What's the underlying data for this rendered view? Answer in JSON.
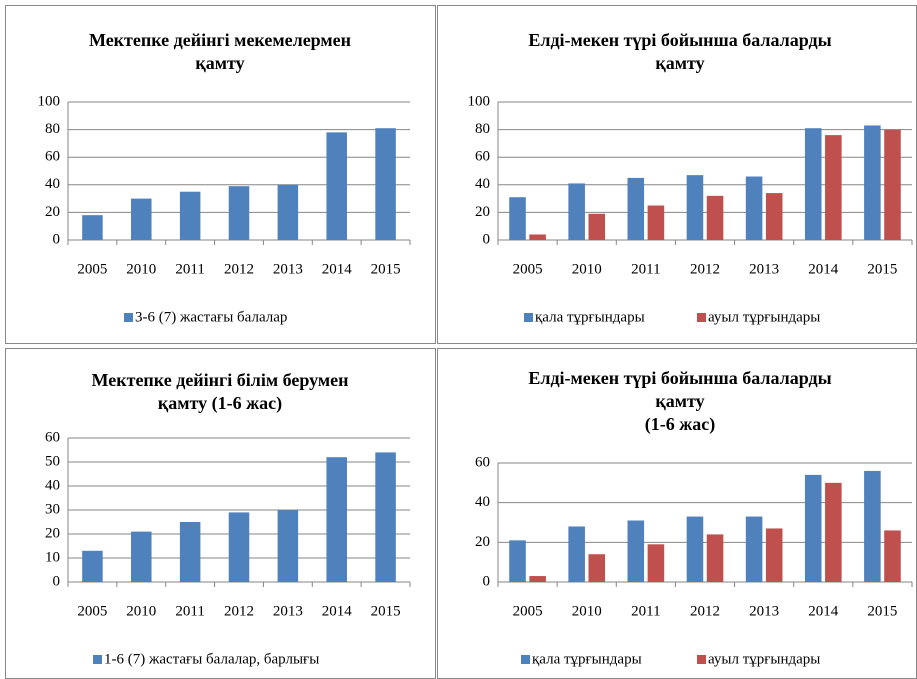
{
  "chart_data": [
    {
      "type": "bar",
      "title": [
        "Мектепке дейінгі мекемелермен",
        "қамту"
      ],
      "categories": [
        "2005",
        "2010",
        "2011",
        "2012",
        "2013",
        "2014",
        "2015"
      ],
      "series": [
        {
          "name": "3-6 (7) жастағы балалар",
          "color": "#4f81bd",
          "values": [
            18,
            30,
            35,
            39,
            40,
            78,
            81
          ]
        }
      ],
      "ylim": [
        0,
        100
      ],
      "yticks": [
        0,
        20,
        40,
        60,
        80,
        100
      ],
      "grid": true
    },
    {
      "type": "bar",
      "title": [
        "Елді-мекен түрі бойынша балаларды",
        "қамту"
      ],
      "categories": [
        "2005",
        "2010",
        "2011",
        "2012",
        "2013",
        "2014",
        "2015"
      ],
      "series": [
        {
          "name": "қала тұрғындары",
          "color": "#4f81bd",
          "values": [
            31,
            41,
            45,
            47,
            46,
            81,
            83
          ]
        },
        {
          "name": "ауыл тұрғындары",
          "color": "#c0504d",
          "values": [
            4,
            19,
            25,
            32,
            34,
            76,
            80
          ]
        }
      ],
      "ylim": [
        0,
        100
      ],
      "yticks": [
        0,
        20,
        40,
        60,
        80,
        100
      ],
      "grid": true
    },
    {
      "type": "bar",
      "title": [
        "Мектепке дейінгі білім берумен",
        "қамту (1-6 жас)"
      ],
      "categories": [
        "2005",
        "2010",
        "2011",
        "2012",
        "2013",
        "2014",
        "2015"
      ],
      "series": [
        {
          "name": "1-6 (7) жастағы балалар, барлығы",
          "color": "#4f81bd",
          "values": [
            13,
            21,
            25,
            29,
            30,
            52,
            54
          ]
        }
      ],
      "ylim": [
        0,
        60
      ],
      "yticks": [
        0,
        10,
        20,
        30,
        40,
        50,
        60
      ],
      "grid": true
    },
    {
      "type": "bar",
      "title": [
        "Елді-мекен түрі бойынша балаларды",
        "қамту",
        "(1-6 жас)"
      ],
      "categories": [
        "2005",
        "2010",
        "2011",
        "2012",
        "2013",
        "2014",
        "2015"
      ],
      "series": [
        {
          "name": "қала тұрғындары",
          "color": "#4f81bd",
          "values": [
            21,
            28,
            31,
            33,
            33,
            54,
            56
          ]
        },
        {
          "name": "ауыл тұрғындары",
          "color": "#c0504d",
          "values": [
            3,
            14,
            19,
            24,
            27,
            50,
            26
          ]
        }
      ],
      "ylim": [
        0,
        60
      ],
      "yticks": [
        0,
        20,
        40,
        60
      ],
      "grid": true
    }
  ]
}
